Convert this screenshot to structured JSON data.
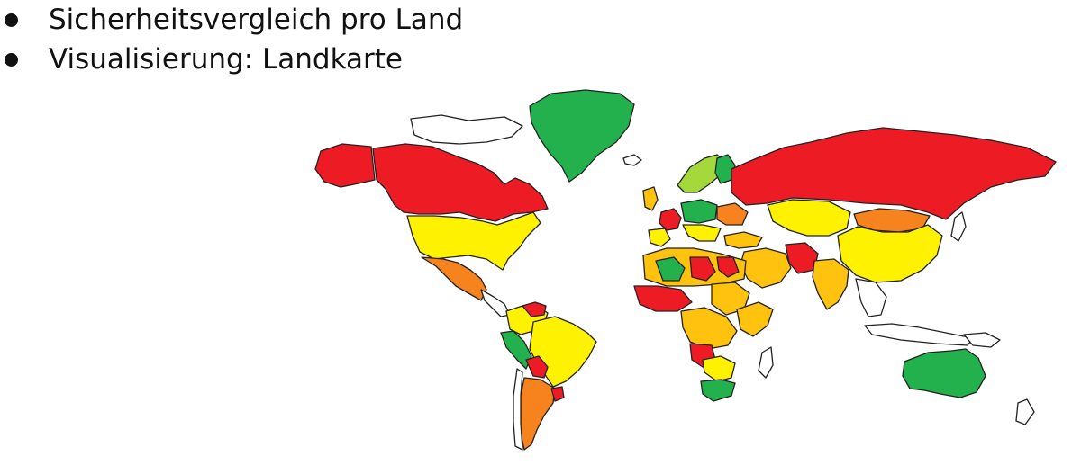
{
  "bullets": [
    {
      "text": "Sicherheitsvergleich pro Land"
    },
    {
      "text": "Visualisierung: Landkarte"
    }
  ],
  "map": {
    "type": "choropleth",
    "palette": {
      "green": "#22b14c",
      "light_green": "#a5d93b",
      "yellow": "#fff200",
      "gold": "#ffc20e",
      "orange": "#f7831e",
      "red": "#ed1c24",
      "no_data": "#ffffff",
      "border": "#222222"
    }
  }
}
